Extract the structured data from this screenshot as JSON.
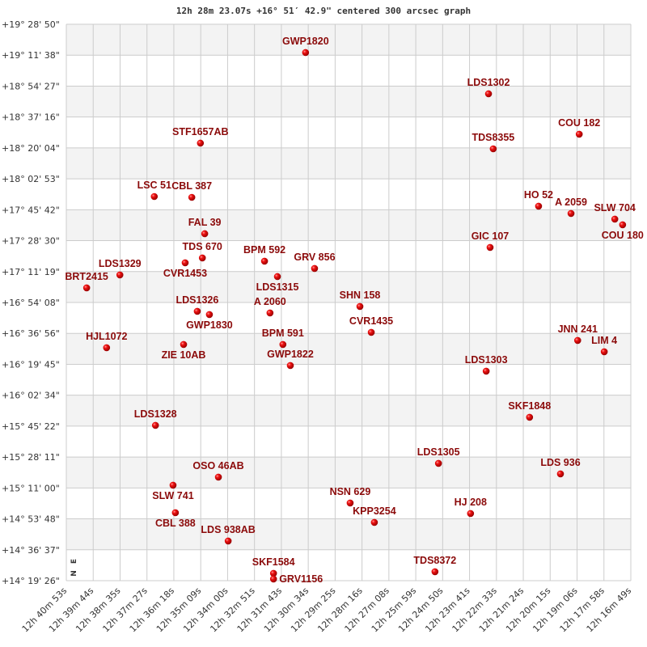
{
  "chart_data": {
    "type": "scatter",
    "title": "12h 28m 23.07s +16° 51′ 42.9\" centered 300 arcsec graph",
    "x_axis": {
      "quantity": "right ascension",
      "range": [
        "12h 40m 53s",
        "12h 16m 49s"
      ],
      "direction": "decreasing to the right",
      "tick_labels": [
        "12h 40m 53s",
        "12h 39m 44s",
        "12h 38m 35s",
        "12h 37m 27s",
        "12h 36m 18s",
        "12h 35m 09s",
        "12h 34m 00s",
        "12h 32m 51s",
        "12h 31m 43s",
        "12h 30m 34s",
        "12h 29m 25s",
        "12h 28m 16s",
        "12h 27m 08s",
        "12h 25m 59s",
        "12h 24m 50s",
        "12h 23m 41s",
        "12h 22m 33s",
        "12h 21m 24s",
        "12h 20m 15s",
        "12h 19m 06s",
        "12h 17m 58s",
        "12h 16m 49s"
      ]
    },
    "y_axis": {
      "quantity": "declination",
      "range": [
        "+14° 19' 26\"",
        "+19° 28' 50\""
      ],
      "tick_labels": [
        "+19° 28' 50\"",
        "+19° 11' 38\"",
        "+18° 54' 27\"",
        "+18° 37' 16\"",
        "+18° 20' 04\"",
        "+18° 02' 53\"",
        "+17° 45' 42\"",
        "+17° 28' 30\"",
        "+17° 11' 19\"",
        "+16° 54' 08\"",
        "+16° 36' 56\"",
        "+16° 19' 45\"",
        "+16° 02' 34\"",
        "+15° 45' 22\"",
        "+15° 28' 11\"",
        "+15° 11' 00\"",
        "+14° 53' 48\"",
        "+14° 36' 37\"",
        "+14° 19' 26\""
      ]
    },
    "grid": true,
    "alternating_row_shading": true,
    "compass": {
      "north": "N",
      "east": "E"
    },
    "colors": {
      "marker": "#dd0000",
      "label": "#8b0a0a",
      "grid": "#cccccc",
      "band": "#f3f3f3"
    },
    "points": [
      {
        "label": "GWP1820",
        "ra": "12h 30m 41s",
        "dec": "+19° 13' 06\""
      },
      {
        "label": "LDS1302",
        "ra": "12h 22m 53s",
        "dec": "+18° 50' 10\""
      },
      {
        "label": "COU 182",
        "ra": "12h 19m 01s",
        "dec": "+18° 27' 41\""
      },
      {
        "label": "STF1657AB",
        "ra": "12h 35m 10s",
        "dec": "+18° 22' 44\""
      },
      {
        "label": "TDS8355",
        "ra": "12h 22m 41s",
        "dec": "+18° 19' 35\""
      },
      {
        "label": "LSC  51",
        "ra": "12h 37m 08s",
        "dec": "+17° 53' 03\""
      },
      {
        "label": "CBL 387",
        "ra": "12h 35m 32s",
        "dec": "+17° 52' 36\""
      },
      {
        "label": "HO   52",
        "ra": "12h 20m 45s",
        "dec": "+17° 47' 40\""
      },
      {
        "label": "A  2059",
        "ra": "12h 19m 22s",
        "dec": "+17° 43' 37\""
      },
      {
        "label": "SLW 704",
        "ra": "12h 17m 30s",
        "dec": "+17° 40' 28\""
      },
      {
        "label": "COU 180",
        "ra": "12h 17m 10s",
        "dec": "+17° 37' 19\""
      },
      {
        "label": "FAL  39",
        "ra": "12h 34m 59s",
        "dec": "+17° 32' 22\""
      },
      {
        "label": "GIC 107",
        "ra": "12h 22m 49s",
        "dec": "+17° 24' 44\""
      },
      {
        "label": "TDS 670",
        "ra": "12h 35m 05s",
        "dec": "+17° 18' 53\""
      },
      {
        "label": "CVR1453",
        "ra": "12h 35m 49s",
        "dec": "+17° 16' 11\""
      },
      {
        "label": "BPM 592",
        "ra": "12h 32m 26s",
        "dec": "+17° 17' 05\""
      },
      {
        "label": "GRV 856",
        "ra": "12h 30m 18s",
        "dec": "+17° 13' 02\""
      },
      {
        "label": "LDS1315",
        "ra": "12h 31m 53s",
        "dec": "+17° 08' 32\""
      },
      {
        "label": "LDS1329",
        "ra": "12h 38m 36s",
        "dec": "+17° 09' 26\""
      },
      {
        "label": "BRT2415",
        "ra": "12h 40m 01s",
        "dec": "+17° 02' 15\""
      },
      {
        "label": "SHN 158",
        "ra": "12h 28m 22s",
        "dec": "+16° 51' 54\""
      },
      {
        "label": "LDS1326",
        "ra": "12h 35m 18s",
        "dec": "+16° 49' 12\""
      },
      {
        "label": "GWP1830",
        "ra": "12h 34m 47s",
        "dec": "+16° 47' 24\""
      },
      {
        "label": "A  2060",
        "ra": "12h 32m 12s",
        "dec": "+16° 48' 18\""
      },
      {
        "label": "CVR1435",
        "ra": "12h 27m 53s",
        "dec": "+16° 37' 31\""
      },
      {
        "label": "JNN 241",
        "ra": "12h 19m 05s",
        "dec": "+16° 33' 01\""
      },
      {
        "label": "BPM 591",
        "ra": "12h 31m 39s",
        "dec": "+16° 30' 46\""
      },
      {
        "label": "ZIE  10AB",
        "ra": "12h 35m 53s",
        "dec": "+16° 30' 46\""
      },
      {
        "label": "HJL1072",
        "ra": "12h 39m 10s",
        "dec": "+16° 28' 58\""
      },
      {
        "label": "LIM   4",
        "ra": "12h 17m 57s",
        "dec": "+16° 26' 43\""
      },
      {
        "label": "GWP1822",
        "ra": "12h 31m 20s",
        "dec": "+16° 19' 04\""
      },
      {
        "label": "LDS1303",
        "ra": "12h 22m 59s",
        "dec": "+16° 15' 56\""
      },
      {
        "label": "SKF1848",
        "ra": "12h 21m 08s",
        "dec": "+15° 50' 18\""
      },
      {
        "label": "LDS1328",
        "ra": "12h 37m 05s",
        "dec": "+15° 45' 48\""
      },
      {
        "label": "LDS1305",
        "ra": "12h 25m 01s",
        "dec": "+15° 24' 40\""
      },
      {
        "label": "LDS 936",
        "ra": "12h 19m 49s",
        "dec": "+15° 18' 49\""
      },
      {
        "label": "OSO  46AB",
        "ra": "12h 34m 24s",
        "dec": "+15° 17' 01\""
      },
      {
        "label": "SLW 741",
        "ra": "12h 36m 20s",
        "dec": "+15° 12' 31\""
      },
      {
        "label": "NSN 629",
        "ra": "12h 28m 47s",
        "dec": "+15° 02' 38\""
      },
      {
        "label": "CBL 388",
        "ra": "12h 36m 14s",
        "dec": "+14° 57' 14\""
      },
      {
        "label": "HJ  208",
        "ra": "12h 23m 39s",
        "dec": "+14° 56' 47\""
      },
      {
        "label": "KPP3254",
        "ra": "12h 27m 45s",
        "dec": "+14° 51' 50\""
      },
      {
        "label": "LDS 938AB",
        "ra": "12h 33m 59s",
        "dec": "+14° 41' 30\""
      },
      {
        "label": "TDS8372",
        "ra": "12h 25m 10s",
        "dec": "+14° 24' 25\""
      },
      {
        "label": "SKF1584",
        "ra": "12h 32m 03s",
        "dec": "+14° 23' 31\""
      },
      {
        "label": "GRV1156",
        "ra": "12h 32m 03s",
        "dec": "+14° 20' 22\""
      }
    ]
  }
}
